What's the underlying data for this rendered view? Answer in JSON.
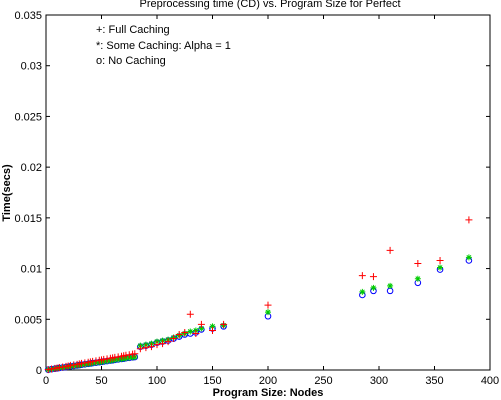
{
  "chart_data": {
    "type": "scatter",
    "title": "Preprocessing time (CD) vs. Program Size for Perfect",
    "xlabel": "Program Size: Nodes",
    "ylabel": "Time(secs)",
    "xlim": [
      0,
      400
    ],
    "ylim": [
      0,
      0.035
    ],
    "xticks": [
      "0",
      "50",
      "100",
      "150",
      "200",
      "250",
      "300",
      "350",
      "400"
    ],
    "yticks": [
      "0",
      "0.005",
      "0.01",
      "0.015",
      "0.02",
      "0.025",
      "0.03",
      "0.035"
    ],
    "grid": false,
    "legend_placement": "top-left",
    "legend": [
      "+: Full Caching",
      "*: Some Caching: Alpha = 1",
      "o: No Caching"
    ],
    "series": [
      {
        "marker": "+",
        "color": "#ff0000",
        "x": [
          2,
          5,
          8,
          10,
          12,
          15,
          18,
          20,
          22,
          25,
          28,
          30,
          32,
          35,
          38,
          40,
          42,
          45,
          48,
          50,
          52,
          55,
          58,
          60,
          62,
          65,
          68,
          70,
          72,
          75,
          78,
          80,
          85,
          90,
          95,
          100,
          105,
          110,
          115,
          120,
          125,
          130,
          135,
          140,
          150,
          160,
          200,
          285,
          295,
          310,
          335,
          355,
          381
        ],
        "y": [
          4e-05,
          0.0001,
          0.00016,
          0.0002,
          0.00025,
          0.0003,
          0.00036,
          0.0004,
          0.00045,
          0.0005,
          0.00056,
          0.0006,
          0.00065,
          0.0007,
          0.00076,
          0.0008,
          0.00085,
          0.0009,
          0.00096,
          0.001,
          0.00105,
          0.0011,
          0.00116,
          0.0012,
          0.00125,
          0.0013,
          0.00136,
          0.0014,
          0.00145,
          0.0015,
          0.00156,
          0.0016,
          0.0021,
          0.0022,
          0.0023,
          0.0025,
          0.0026,
          0.0028,
          0.0031,
          0.0035,
          0.0037,
          0.0055,
          0.0036,
          0.0045,
          0.0039,
          0.0045,
          0.0064,
          0.0093,
          0.0092,
          0.0118,
          0.0105,
          0.0108,
          0.0148
        ]
      },
      {
        "marker": "*",
        "color": "#00cc00",
        "x": [
          2,
          5,
          8,
          10,
          12,
          15,
          18,
          20,
          22,
          25,
          28,
          30,
          32,
          35,
          38,
          40,
          42,
          45,
          48,
          50,
          52,
          55,
          58,
          60,
          62,
          65,
          68,
          70,
          72,
          75,
          78,
          80,
          85,
          90,
          95,
          100,
          105,
          110,
          115,
          120,
          125,
          130,
          135,
          140,
          150,
          160,
          200,
          285,
          295,
          310,
          335,
          355,
          381
        ],
        "y": [
          3e-05,
          8e-05,
          0.00013,
          0.00016,
          0.0002,
          0.00024,
          0.00029,
          0.00032,
          0.00036,
          0.0004,
          0.00045,
          0.00048,
          0.00052,
          0.00056,
          0.00061,
          0.00064,
          0.00068,
          0.00072,
          0.00077,
          0.0008,
          0.00084,
          0.00088,
          0.00093,
          0.00096,
          0.001,
          0.00104,
          0.00109,
          0.00112,
          0.00116,
          0.0012,
          0.00125,
          0.00128,
          0.0024,
          0.0025,
          0.0026,
          0.0028,
          0.0029,
          0.003,
          0.0032,
          0.0034,
          0.0036,
          0.0038,
          0.0039,
          0.0041,
          0.0043,
          0.0044,
          0.0057,
          0.0077,
          0.0081,
          0.0083,
          0.009,
          0.0101,
          0.0111
        ]
      },
      {
        "marker": "o",
        "color": "#0000ff",
        "x": [
          2,
          5,
          8,
          10,
          12,
          15,
          18,
          20,
          22,
          25,
          28,
          30,
          32,
          35,
          38,
          40,
          42,
          45,
          48,
          50,
          52,
          55,
          58,
          60,
          62,
          65,
          68,
          70,
          72,
          75,
          78,
          80,
          85,
          90,
          95,
          100,
          105,
          110,
          115,
          120,
          125,
          130,
          135,
          140,
          150,
          160,
          200,
          285,
          295,
          310,
          335,
          355,
          381
        ],
        "y": [
          3e-05,
          8e-05,
          0.00013,
          0.00016,
          0.0002,
          0.00024,
          0.00029,
          0.00032,
          0.00036,
          0.0004,
          0.00045,
          0.00048,
          0.00052,
          0.00056,
          0.00061,
          0.00064,
          0.00068,
          0.00072,
          0.00077,
          0.0008,
          0.00084,
          0.00088,
          0.00093,
          0.00096,
          0.001,
          0.00104,
          0.00109,
          0.00112,
          0.00116,
          0.0012,
          0.00125,
          0.00128,
          0.0023,
          0.0024,
          0.0025,
          0.0027,
          0.0028,
          0.0029,
          0.0031,
          0.0033,
          0.0035,
          0.0036,
          0.0037,
          0.004,
          0.0041,
          0.0043,
          0.0053,
          0.0074,
          0.0078,
          0.0078,
          0.0086,
          0.0099,
          0.0108
        ]
      }
    ]
  }
}
